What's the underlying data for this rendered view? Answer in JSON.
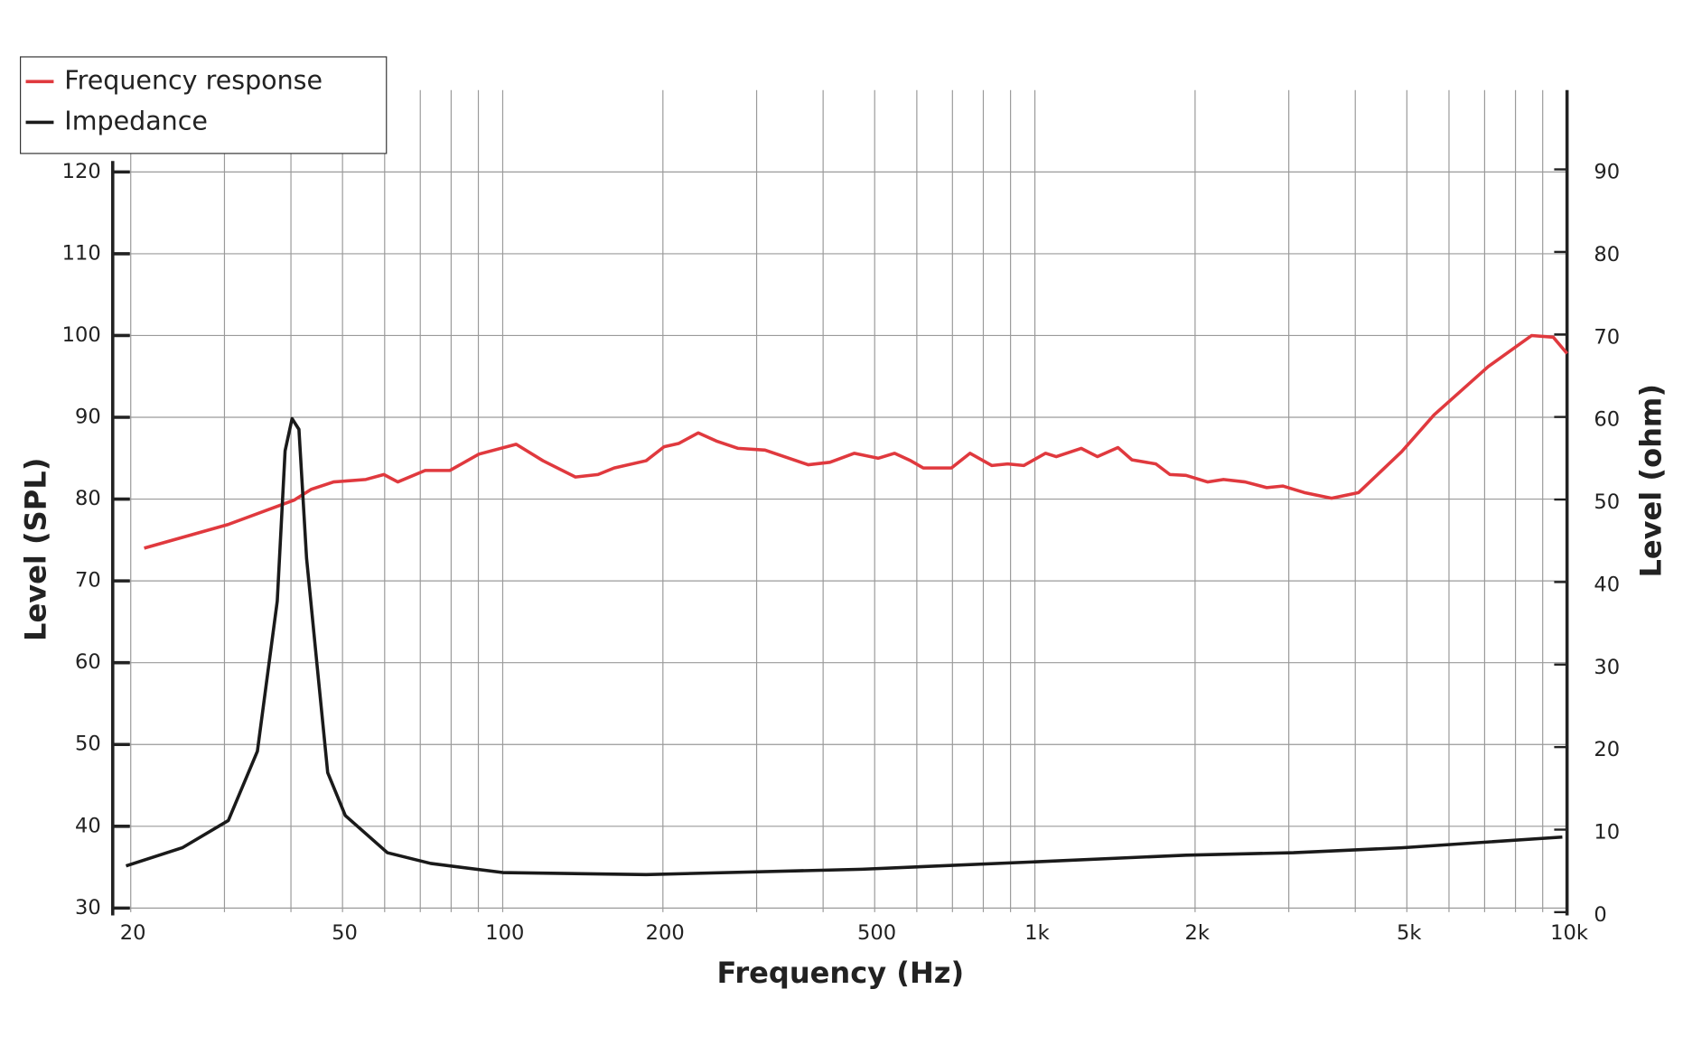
{
  "chart_data": {
    "type": "line",
    "xlabel": "Frequency (Hz)",
    "ylabel": "Level (SPL)",
    "y2label": "Level (ohm)",
    "xscale": "log",
    "grid": true,
    "legend": "upper left",
    "xlim": [
      18.5,
      10000
    ],
    "xticks": [
      20,
      50,
      100,
      200,
      500,
      {
        "value": 1000,
        "label": "1k"
      },
      {
        "value": 2000,
        "label": "2k"
      },
      {
        "value": 5000,
        "label": "5k"
      },
      {
        "value": 10000,
        "label": "10k"
      }
    ],
    "xgrid": [
      20,
      30,
      40,
      50,
      60,
      70,
      80,
      90,
      100,
      200,
      300,
      400,
      500,
      600,
      700,
      800,
      900,
      1000,
      2000,
      3000,
      4000,
      5000,
      6000,
      7000,
      8000,
      9000,
      10000
    ],
    "ylim": [
      29.5,
      130
    ],
    "yticks": [
      30,
      40,
      50,
      60,
      70,
      80,
      90,
      100,
      110,
      120
    ],
    "y2lim": [
      0,
      99.6
    ],
    "y2ticks": [
      0,
      10,
      20,
      30,
      40,
      50,
      60,
      70,
      80,
      90
    ],
    "series": [
      {
        "name": "Frequency response",
        "color": "#e0393e",
        "x": [
          21.2,
          30.5,
          40.6,
          43.7,
          48.1,
          55.3,
          59.8,
          63.5,
          71.5,
          79.6,
          90.2,
          106,
          119,
          137,
          151,
          162,
          186,
          201,
          214,
          233,
          252,
          277,
          311,
          375,
          412,
          458,
          508,
          545,
          584,
          617,
          697,
          755,
          830,
          889,
          953,
          1047,
          1097,
          1222,
          1311,
          1433,
          1522,
          1688,
          1794,
          1923,
          2110,
          2262,
          2483,
          2727,
          2923,
          3209,
          3610,
          4058,
          4889,
          5626,
          7110,
          8576,
          9420,
          10000
        ],
        "values": [
          74.0,
          76.9,
          79.9,
          81.2,
          82.1,
          82.4,
          83.0,
          82.1,
          83.5,
          83.5,
          85.5,
          86.7,
          84.7,
          82.7,
          83.0,
          83.8,
          84.7,
          86.4,
          86.8,
          88.1,
          87.1,
          86.2,
          86.0,
          84.2,
          84.5,
          85.6,
          85.0,
          85.6,
          84.7,
          83.8,
          83.8,
          85.6,
          84.1,
          84.3,
          84.1,
          85.6,
          85.2,
          86.2,
          85.2,
          86.3,
          84.8,
          84.3,
          83.0,
          82.9,
          82.1,
          82.4,
          82.1,
          81.4,
          81.6,
          80.8,
          80.1,
          80.8,
          85.8,
          90.3,
          96.2,
          100.0,
          99.8,
          97.8
        ]
      },
      {
        "name": "Impedance",
        "color": "#1a1a1a",
        "axis": "y2",
        "x": [
          19.6,
          25.0,
          30.5,
          34.6,
          37.7,
          39.0,
          40.2,
          41.4,
          42.8,
          44.8,
          46.9,
          50.6,
          60.7,
          73.2,
          100,
          186,
          473,
          1000,
          1923,
          3062,
          4889,
          9800
        ],
        "values": [
          5.6,
          7.8,
          11.1,
          19.5,
          37.7,
          55.9,
          59.8,
          58.5,
          42.9,
          29.9,
          16.9,
          11.7,
          7.2,
          5.9,
          4.8,
          4.55,
          5.2,
          6.1,
          6.9,
          7.2,
          7.8,
          9.1
        ]
      }
    ]
  }
}
